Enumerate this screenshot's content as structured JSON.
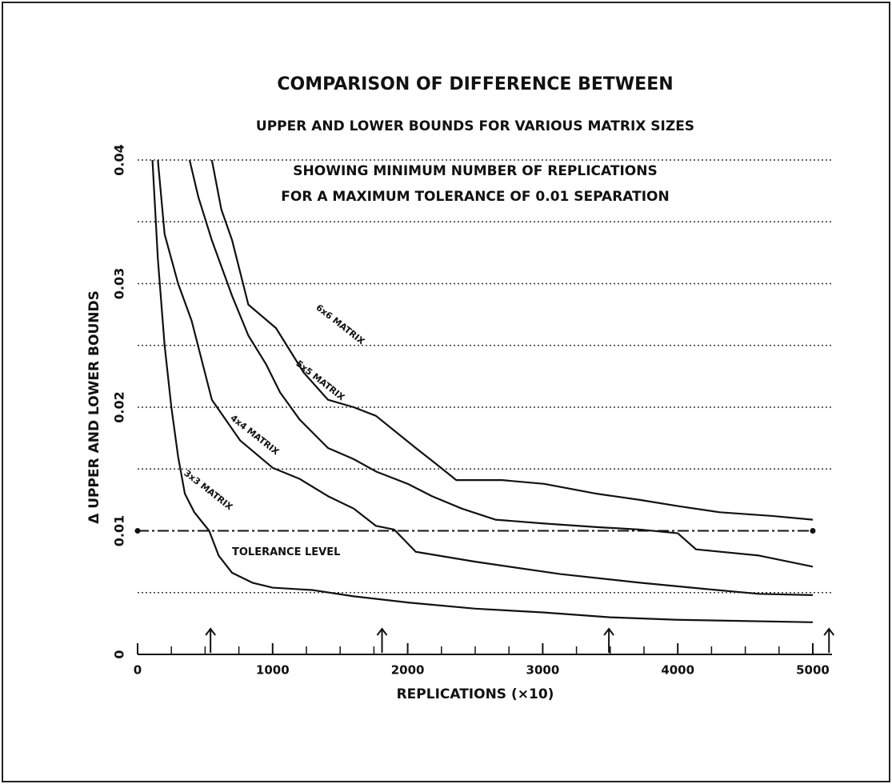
{
  "chart_data": {
    "type": "line",
    "title": "COMPARISON OF DIFFERENCE BETWEEN",
    "subtitle": "UPPER AND LOWER BOUNDS FOR VARIOUS MATRIX SIZES",
    "annotations": [
      "SHOWING MINIMUM NUMBER OF REPLICATIONS",
      "FOR A MAXIMUM TOLERANCE OF 0.01 SEPARATION"
    ],
    "xlabel": "REPLICATIONS (×10)",
    "ylabel": "Δ UPPER AND LOWER BOUNDS",
    "xlim": [
      0,
      5000
    ],
    "ylim": [
      0,
      0.04
    ],
    "xticks": [
      0,
      1000,
      2000,
      3000,
      4000,
      5000
    ],
    "xminorticks": [
      250,
      500,
      750,
      1250,
      1500,
      1750,
      2250,
      2500,
      2750,
      3250,
      3500,
      3750,
      4250,
      4500,
      4750
    ],
    "yticks": [
      0,
      0.01,
      0.02,
      0.03,
      0.04
    ],
    "ygrid": [
      0.005,
      0.01,
      0.015,
      0.02,
      0.025,
      0.03,
      0.035,
      0.04
    ],
    "tolerance": {
      "label": "TOLERANCE LEVEL",
      "value": 0.01
    },
    "arrows": [
      540,
      1810,
      3490,
      5120
    ],
    "color": "#111111",
    "series": [
      {
        "name": "3x3 MATRIX",
        "color": "#111111",
        "x": [
          110,
          150,
          200,
          250,
          300,
          350,
          420,
          530,
          600,
          700,
          850,
          1000,
          1300,
          1600,
          2000,
          2500,
          3000,
          3500,
          4000,
          5000
        ],
        "values": [
          0.04,
          0.032,
          0.025,
          0.02,
          0.016,
          0.013,
          0.0115,
          0.01,
          0.008,
          0.0066,
          0.0058,
          0.0054,
          0.0052,
          0.0047,
          0.0042,
          0.0037,
          0.0034,
          0.003,
          0.0028,
          0.0026
        ]
      },
      {
        "name": "4x4 MATRIX",
        "color": "#111111",
        "x": [
          150,
          200,
          300,
          400,
          550,
          760,
          1000,
          1200,
          1410,
          1600,
          1765,
          1900,
          2060,
          2500,
          3130,
          3720,
          4200,
          4600,
          5000
        ],
        "values": [
          0.04,
          0.034,
          0.03,
          0.027,
          0.0206,
          0.0173,
          0.0151,
          0.0142,
          0.0128,
          0.0118,
          0.0104,
          0.0101,
          0.0083,
          0.0075,
          0.0065,
          0.0058,
          0.0053,
          0.0049,
          0.0048
        ]
      },
      {
        "name": "5x5 MATRIX",
        "color": "#111111",
        "x": [
          385,
          450,
          550,
          700,
          820,
          950,
          1055,
          1200,
          1410,
          1600,
          1765,
          2000,
          2180,
          2400,
          2650,
          3000,
          3400,
          3720,
          4000,
          4135,
          4600,
          5000
        ],
        "values": [
          0.04,
          0.037,
          0.0335,
          0.029,
          0.0258,
          0.0235,
          0.0212,
          0.019,
          0.0167,
          0.0158,
          0.0148,
          0.0138,
          0.0128,
          0.0118,
          0.0109,
          0.0106,
          0.0103,
          0.0101,
          0.0098,
          0.0085,
          0.008,
          0.0071
        ]
      },
      {
        "name": "6x6 MATRIX",
        "color": "#111111",
        "x": [
          550,
          620,
          700,
          820,
          1025,
          1230,
          1410,
          1600,
          1765,
          2060,
          2200,
          2360,
          2700,
          3010,
          3400,
          3720,
          4000,
          4310,
          4700,
          5000
        ],
        "values": [
          0.04,
          0.036,
          0.0335,
          0.0283,
          0.0264,
          0.0228,
          0.0206,
          0.02,
          0.0193,
          0.0167,
          0.0155,
          0.0141,
          0.0141,
          0.0138,
          0.013,
          0.0125,
          0.012,
          0.0115,
          0.0112,
          0.0109
        ]
      }
    ]
  }
}
